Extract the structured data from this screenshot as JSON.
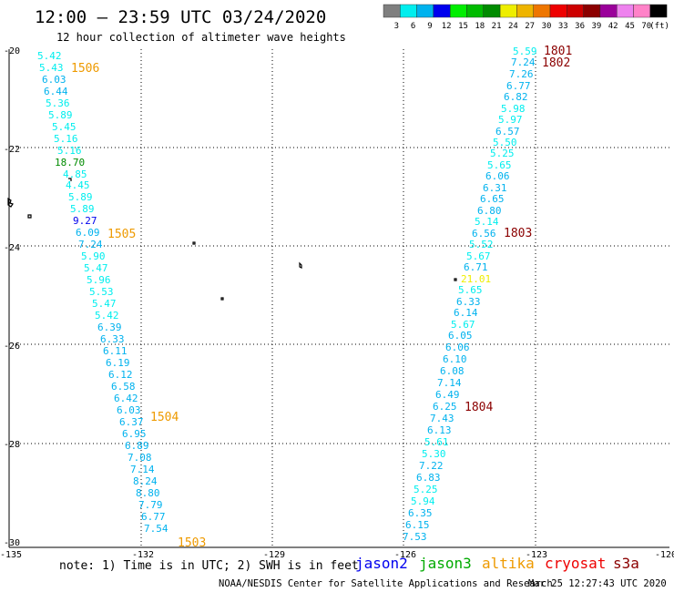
{
  "header": {
    "title": "12:00 — 23:59 UTC 03/24/2020",
    "subtitle": "12 hour collection of altimeter wave heights"
  },
  "colorbar": {
    "colors": [
      "#7f7f7f",
      "#00eeee",
      "#00b2ee",
      "#0000ee",
      "#00ee00",
      "#00bb00",
      "#008b00",
      "#eeee00",
      "#eeb400",
      "#ee7600",
      "#ee0000",
      "#cd0000",
      "#8b0000",
      "#9a009a",
      "#ee82ee",
      "#ff82c8",
      "#000000"
    ],
    "labels": [
      "3",
      "6",
      "9",
      "12",
      "15",
      "18",
      "21",
      "24",
      "27",
      "30",
      "33",
      "36",
      "39",
      "42",
      "45",
      "70",
      "(ft)"
    ]
  },
  "axes": {
    "y_labels": [
      "-20",
      "-22",
      "-24",
      "-26",
      "-28",
      "-30"
    ],
    "x_labels": [
      "-135",
      "-132",
      "-129",
      "-126",
      "-123",
      "-120"
    ]
  },
  "tracks": [
    {
      "values": [
        "5.42",
        "5.43",
        "6.03",
        "6.44",
        "5.36",
        "5.89",
        "5.45",
        "5.16",
        "5.16",
        "18.70",
        "4.85",
        "4.45",
        "5.89",
        "5.89",
        "9.27",
        "6.09",
        "7.24",
        "5.90",
        "5.47",
        "5.96",
        "5.53",
        "5.47",
        "5.42",
        "6.39",
        "6.33",
        "6.11",
        "6.19",
        "6.12",
        "6.58",
        "6.42",
        "6.03",
        "6.37",
        "6.95",
        "6.89",
        "7.08",
        "7.14",
        "8.24",
        "8.80",
        "7.79",
        "6.77",
        "7.54"
      ],
      "colors": [
        "#00eeee",
        "#00eeee",
        "#00b2ee",
        "#00b2ee",
        "#00eeee",
        "#00eeee",
        "#00eeee",
        "#00eeee",
        "#00eeee",
        "#008b00",
        "#00eeee",
        "#00eeee",
        "#00eeee",
        "#00eeee",
        "#0000ee",
        "#00b2ee",
        "#00b2ee",
        "#00eeee",
        "#00eeee",
        "#00eeee",
        "#00eeee",
        "#00eeee",
        "#00eeee",
        "#00b2ee",
        "#00b2ee",
        "#00b2ee",
        "#00b2ee",
        "#00b2ee",
        "#00b2ee",
        "#00b2ee",
        "#00b2ee",
        "#00b2ee",
        "#00b2ee",
        "#00b2ee",
        "#00b2ee",
        "#00b2ee",
        "#00b2ee",
        "#00b2ee",
        "#00b2ee",
        "#00b2ee",
        "#00b2ee"
      ],
      "labels": [
        {
          "text": "1506",
          "color": "#ee9a00"
        },
        {
          "text": "1505",
          "color": "#ee9a00"
        },
        {
          "text": "1504",
          "color": "#ee9a00"
        },
        {
          "text": "1503",
          "color": "#ee9a00"
        }
      ]
    },
    {
      "values": [
        "5.59",
        "7.24",
        "7.26",
        "6.77",
        "6.82",
        "5.98",
        "5.97",
        "6.57",
        "5.50",
        "5.25",
        "5.65",
        "6.06",
        "6.31",
        "6.65",
        "6.80",
        "5.14",
        "6.56",
        "5.52",
        "5.67",
        "6.71",
        "21.01",
        "5.65",
        "6.33",
        "6.14",
        "5.67",
        "6.05",
        "6.06",
        "6.10",
        "6.08",
        "7.14",
        "6.49",
        "6.25",
        "7.43",
        "6.13",
        "5.61",
        "5.30",
        "7.22",
        "6.83",
        "5.25",
        "5.94",
        "6.35",
        "6.15",
        "7.53"
      ],
      "colors": [
        "#00eeee",
        "#00b2ee",
        "#00b2ee",
        "#00b2ee",
        "#00b2ee",
        "#00eeee",
        "#00eeee",
        "#00b2ee",
        "#00eeee",
        "#00eeee",
        "#00eeee",
        "#00b2ee",
        "#00b2ee",
        "#00b2ee",
        "#00b2ee",
        "#00eeee",
        "#00b2ee",
        "#00eeee",
        "#00eeee",
        "#00b2ee",
        "#eeee00",
        "#00eeee",
        "#00b2ee",
        "#00b2ee",
        "#00eeee",
        "#00b2ee",
        "#00b2ee",
        "#00b2ee",
        "#00b2ee",
        "#00b2ee",
        "#00b2ee",
        "#00b2ee",
        "#00b2ee",
        "#00b2ee",
        "#00eeee",
        "#00eeee",
        "#00b2ee",
        "#00b2ee",
        "#00eeee",
        "#00eeee",
        "#00b2ee",
        "#00b2ee",
        "#00b2ee"
      ],
      "labels": [
        {
          "text": "1801",
          "color": "#8b0000"
        },
        {
          "text": "1802",
          "color": "#8b0000"
        },
        {
          "text": "1803",
          "color": "#8b0000"
        },
        {
          "text": "1804",
          "color": "#8b0000"
        }
      ]
    }
  ],
  "footer": {
    "note": "note: 1) Time is in UTC; 2) SWH is in feet",
    "legend": [
      {
        "name": "jason2",
        "color": "#0000ee"
      },
      {
        "name": "jason3",
        "color": "#00aa00"
      },
      {
        "name": "altika",
        "color": "#ee9a00"
      },
      {
        "name": "cryosat",
        "color": "#ee0000"
      },
      {
        "name": "s3a",
        "color": "#8b0000"
      }
    ],
    "credit": "NOAA/NESDIS Center for Satellite Applications and Research",
    "timestamp": "Mar 25 12:27:43 UTC 2020"
  }
}
